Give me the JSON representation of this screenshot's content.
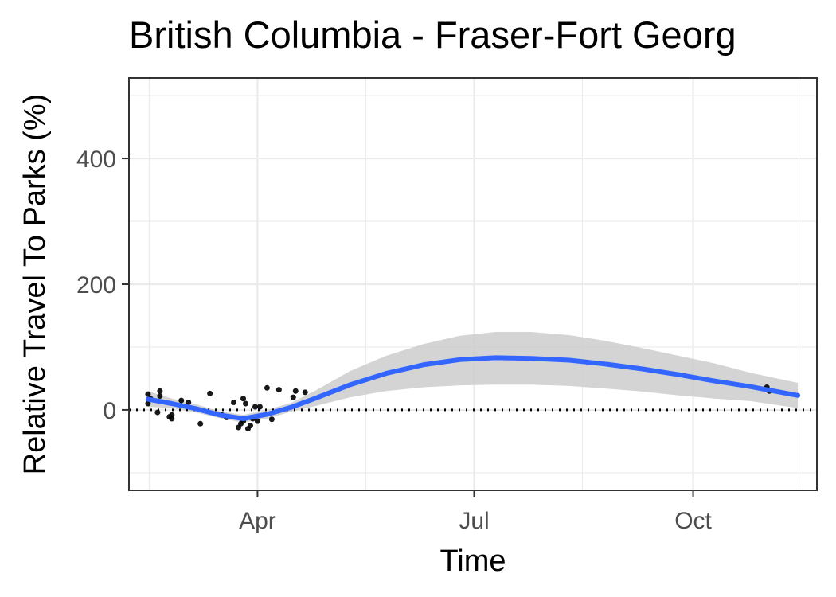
{
  "chart_data": {
    "type": "line",
    "title": "British Columbia - Fraser-Fort Georg",
    "xlabel": "Time",
    "ylabel": "Relative Travel To Parks (%)",
    "x_ticks": [
      {
        "label": "Apr",
        "date": "2020-04-01"
      },
      {
        "label": "Jul",
        "date": "2020-07-01"
      },
      {
        "label": "Oct",
        "date": "2020-10-01"
      }
    ],
    "y_ticks": [
      0,
      200,
      400
    ],
    "xlim": [
      "2020-02-07",
      "2020-11-22"
    ],
    "ylim": [
      -128,
      528
    ],
    "grid": true,
    "reference_line": {
      "y": 0,
      "style": "dotted",
      "color": "#000000"
    },
    "colors": {
      "smooth": "#3366ff",
      "ribbon": "#cccccc",
      "points": "#000000",
      "panel_border": "#333333",
      "grid": "#ebebeb"
    },
    "series": [
      {
        "kind": "smooth",
        "x": [
          "2020-02-15",
          "2020-02-25",
          "2020-03-06",
          "2020-03-16",
          "2020-03-26",
          "2020-04-05",
          "2020-04-15",
          "2020-04-25",
          "2020-05-10",
          "2020-05-25",
          "2020-06-10",
          "2020-06-25",
          "2020-07-10",
          "2020-07-25",
          "2020-08-10",
          "2020-08-25",
          "2020-09-10",
          "2020-09-25",
          "2020-10-10",
          "2020-10-25",
          "2020-11-14"
        ],
        "y": [
          17,
          10,
          2,
          -8,
          -14,
          -7,
          4,
          18,
          40,
          58,
          72,
          80,
          83,
          82,
          79,
          73,
          65,
          56,
          46,
          37,
          23
        ],
        "lower": [
          5,
          3,
          -4,
          -13,
          -20,
          -14,
          -3,
          6,
          20,
          30,
          36,
          39,
          40,
          40,
          38,
          34,
          29,
          23,
          18,
          14,
          3
        ],
        "upper": [
          30,
          18,
          9,
          -2,
          -8,
          0,
          11,
          30,
          62,
          86,
          105,
          118,
          124,
          124,
          119,
          110,
          98,
          86,
          74,
          59,
          43
        ]
      },
      {
        "kind": "points",
        "x": [
          "2020-02-15",
          "2020-02-15",
          "2020-02-16",
          "2020-02-19",
          "2020-02-20",
          "2020-02-20",
          "2020-02-24",
          "2020-02-25",
          "2020-02-25",
          "2020-02-29",
          "2020-03-03",
          "2020-03-08",
          "2020-03-12",
          "2020-03-17",
          "2020-03-19",
          "2020-03-22",
          "2020-03-24",
          "2020-03-25",
          "2020-03-26",
          "2020-03-26",
          "2020-03-27",
          "2020-03-28",
          "2020-03-29",
          "2020-03-30",
          "2020-03-31",
          "2020-04-01",
          "2020-04-02",
          "2020-04-05",
          "2020-04-07",
          "2020-04-10",
          "2020-04-16",
          "2020-04-17",
          "2020-04-21",
          "2020-11-01",
          "2020-11-02"
        ],
        "y": [
          25,
          10,
          18,
          -4,
          30,
          22,
          -11,
          -14,
          -8,
          15,
          12,
          -22,
          26,
          -8,
          -12,
          12,
          -28,
          -22,
          18,
          -18,
          10,
          -30,
          -25,
          -14,
          5,
          -18,
          5,
          35,
          -15,
          32,
          20,
          30,
          28,
          36,
          30
        ]
      }
    ]
  }
}
